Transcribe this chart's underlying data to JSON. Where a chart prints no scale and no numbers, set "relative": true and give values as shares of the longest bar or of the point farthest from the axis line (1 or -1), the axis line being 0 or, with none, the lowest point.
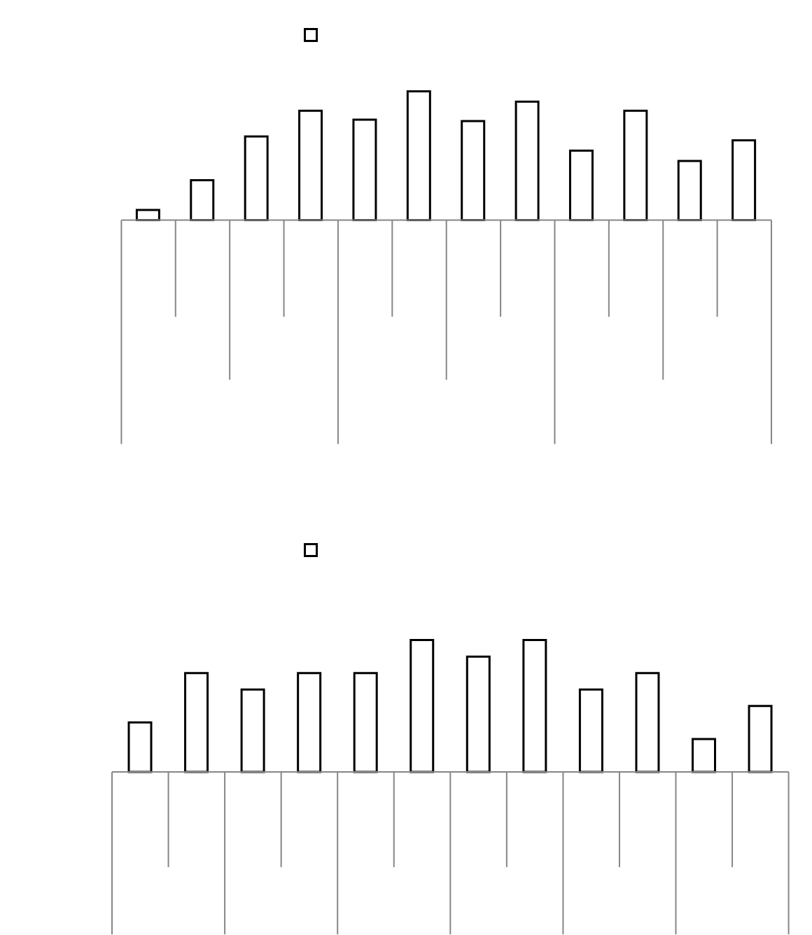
{
  "chart_data": [
    {
      "type": "bar",
      "categories": [
        null,
        null,
        null,
        null,
        null,
        null,
        null,
        null,
        null,
        null,
        null,
        null
      ],
      "values": [
        0.08,
        0.31,
        0.65,
        0.85,
        0.78,
        1,
        0.77,
        0.92,
        0.54,
        0.85,
        0.46,
        0.62
      ],
      "color": "#ffffff",
      "relative": true
    },
    {
      "type": "bar",
      "categories": [
        null,
        null,
        null,
        null,
        null,
        null,
        null,
        null,
        null,
        null,
        null,
        null
      ],
      "values": [
        0.375,
        0.75,
        0.625,
        0.75,
        0.75,
        1,
        0.875,
        1,
        0.625,
        0.75,
        0.25,
        0.5
      ],
      "color": "#ffffff",
      "relative": true
    }
  ]
}
